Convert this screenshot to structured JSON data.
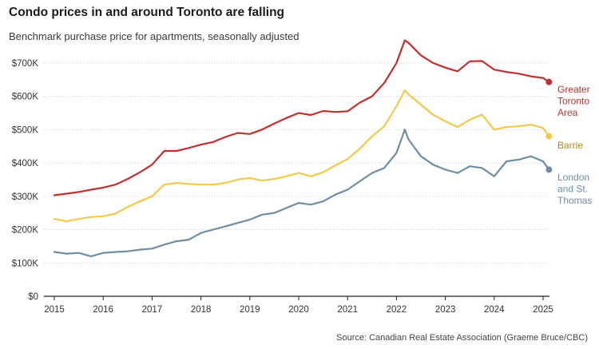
{
  "title": "Condo prices in and around Toronto are falling",
  "subtitle": "Benchmark purchase price for apartments, seasonally adjusted",
  "source": "Source: Canadian Real Estate Association (Graeme Bruce/CBC)",
  "chart_data": {
    "type": "line",
    "title": "Condo prices in and around Toronto are falling",
    "subtitle": "Benchmark purchase price for apartments, seasonally adjusted",
    "xlabel": "",
    "ylabel": "",
    "xlim": [
      2015,
      2025.25
    ],
    "ylim": [
      0,
      750000
    ],
    "grid": true,
    "legend": "end-labels-right",
    "y_ticks": [
      0,
      100000,
      200000,
      300000,
      400000,
      500000,
      600000,
      700000
    ],
    "y_tick_labels": [
      "$0",
      "$100K",
      "$200K",
      "$300K",
      "$400K",
      "$500K",
      "$600K",
      "$700K"
    ],
    "x_ticks": [
      2015,
      2016,
      2017,
      2018,
      2019,
      2020,
      2021,
      2022,
      2023,
      2024,
      2025
    ],
    "x_tick_labels": [
      "2015",
      "2016",
      "2017",
      "2018",
      "2019",
      "2020",
      "2021",
      "2022",
      "2023",
      "2024",
      "2025"
    ],
    "series": [
      {
        "name": "Greater Toronto Area",
        "label_lines": [
          "Greater",
          "Toronto",
          "Area"
        ],
        "color": "#c0302e",
        "x": [
          2015.0,
          2015.25,
          2015.5,
          2015.75,
          2016.0,
          2016.25,
          2016.5,
          2016.75,
          2017.0,
          2017.25,
          2017.5,
          2017.75,
          2018.0,
          2018.25,
          2018.5,
          2018.75,
          2019.0,
          2019.25,
          2019.5,
          2019.75,
          2020.0,
          2020.25,
          2020.5,
          2020.75,
          2021.0,
          2021.25,
          2021.5,
          2021.75,
          2022.0,
          2022.17,
          2022.25,
          2022.5,
          2022.75,
          2023.0,
          2023.25,
          2023.5,
          2023.75,
          2024.0,
          2024.25,
          2024.5,
          2024.75,
          2025.0,
          2025.12
        ],
        "y": [
          303000,
          308000,
          313000,
          320000,
          326000,
          335000,
          352000,
          372000,
          395000,
          436000,
          436000,
          445000,
          455000,
          463000,
          478000,
          490000,
          487000,
          500000,
          518000,
          535000,
          550000,
          544000,
          556000,
          553000,
          555000,
          581000,
          600000,
          640000,
          700000,
          768000,
          760000,
          723000,
          700000,
          686000,
          675000,
          705000,
          706000,
          680000,
          673000,
          668000,
          660000,
          655000,
          643000
        ]
      },
      {
        "name": "Barrie",
        "label_lines": [
          "Barrie"
        ],
        "color": "#f2c94c",
        "x": [
          2015.0,
          2015.25,
          2015.5,
          2015.75,
          2016.0,
          2016.25,
          2016.5,
          2016.75,
          2017.0,
          2017.25,
          2017.5,
          2017.75,
          2018.0,
          2018.25,
          2018.5,
          2018.75,
          2019.0,
          2019.25,
          2019.5,
          2019.75,
          2020.0,
          2020.25,
          2020.5,
          2020.75,
          2021.0,
          2021.25,
          2021.5,
          2021.75,
          2022.0,
          2022.17,
          2022.25,
          2022.5,
          2022.75,
          2023.0,
          2023.25,
          2023.5,
          2023.75,
          2024.0,
          2024.25,
          2024.5,
          2024.75,
          2025.0,
          2025.12
        ],
        "y": [
          232000,
          225000,
          232000,
          238000,
          240000,
          248000,
          268000,
          285000,
          300000,
          335000,
          340000,
          337000,
          335000,
          335000,
          340000,
          350000,
          355000,
          347000,
          352000,
          360000,
          370000,
          360000,
          372000,
          393000,
          412000,
          443000,
          480000,
          510000,
          570000,
          618000,
          605000,
          575000,
          545000,
          525000,
          508000,
          530000,
          545000,
          500000,
          508000,
          510000,
          515000,
          505000,
          480000
        ]
      },
      {
        "name": "London and St. Thomas",
        "label_lines": [
          "London",
          "and St.",
          "Thomas"
        ],
        "color": "#6e8ea5",
        "x": [
          2015.0,
          2015.25,
          2015.5,
          2015.75,
          2016.0,
          2016.25,
          2016.5,
          2016.75,
          2017.0,
          2017.25,
          2017.5,
          2017.75,
          2018.0,
          2018.25,
          2018.5,
          2018.75,
          2019.0,
          2019.25,
          2019.5,
          2019.75,
          2020.0,
          2020.25,
          2020.5,
          2020.75,
          2021.0,
          2021.25,
          2021.5,
          2021.75,
          2022.0,
          2022.17,
          2022.25,
          2022.5,
          2022.75,
          2023.0,
          2023.25,
          2023.5,
          2023.75,
          2024.0,
          2024.25,
          2024.5,
          2024.75,
          2025.0,
          2025.12
        ],
        "y": [
          133000,
          128000,
          130000,
          120000,
          130000,
          133000,
          135000,
          140000,
          143000,
          155000,
          165000,
          170000,
          190000,
          200000,
          210000,
          220000,
          230000,
          245000,
          250000,
          265000,
          280000,
          275000,
          285000,
          305000,
          320000,
          345000,
          370000,
          385000,
          430000,
          500000,
          470000,
          420000,
          395000,
          380000,
          370000,
          390000,
          385000,
          360000,
          405000,
          410000,
          420000,
          405000,
          380000
        ]
      }
    ]
  }
}
